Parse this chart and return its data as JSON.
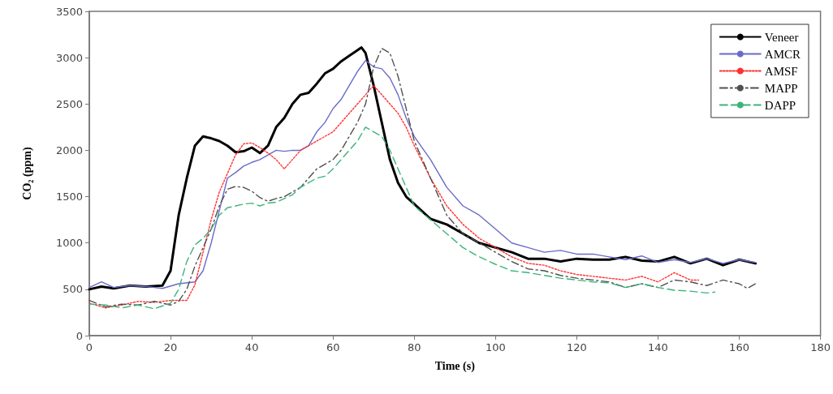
{
  "chart_data": {
    "type": "line",
    "xlabel": "Time (s)",
    "ylabel": "CO₂ (ppm)",
    "xlim": [
      0,
      180
    ],
    "xticks": [
      0,
      20,
      40,
      60,
      80,
      100,
      120,
      140,
      160,
      180
    ],
    "ylim": [
      0,
      3500
    ],
    "yticks": [
      0,
      500,
      1000,
      1500,
      2000,
      2500,
      3000,
      3500
    ],
    "grid": false,
    "legend": "top right",
    "marker": "none",
    "series": [
      {
        "name": "Veneer",
        "color": "#000000",
        "line_style": "solid",
        "x": [
          0,
          3,
          6,
          10,
          14,
          18,
          20,
          22,
          24,
          26,
          28,
          30,
          32,
          34,
          36,
          38,
          40,
          42,
          44,
          46,
          48,
          50,
          52,
          54,
          56,
          58,
          60,
          62,
          64,
          66,
          67,
          68,
          70,
          72,
          74,
          76,
          78,
          80,
          84,
          88,
          92,
          96,
          100,
          104,
          108,
          112,
          116,
          120,
          124,
          128,
          132,
          136,
          140,
          144,
          148,
          152,
          156,
          160,
          164
        ],
        "values": [
          500,
          530,
          510,
          540,
          530,
          540,
          700,
          1300,
          1700,
          2050,
          2150,
          2130,
          2100,
          2050,
          1980,
          1990,
          2030,
          1970,
          2050,
          2250,
          2350,
          2500,
          2600,
          2620,
          2720,
          2830,
          2880,
          2960,
          3020,
          3080,
          3110,
          3050,
          2700,
          2300,
          1900,
          1650,
          1500,
          1420,
          1260,
          1200,
          1100,
          1000,
          950,
          900,
          830,
          830,
          800,
          830,
          820,
          820,
          850,
          810,
          800,
          850,
          780,
          830,
          760,
          820,
          780
        ]
      },
      {
        "name": "AMCR",
        "color": "#6b6bc8",
        "line_style": "solid",
        "x": [
          0,
          3,
          6,
          10,
          14,
          18,
          22,
          26,
          28,
          30,
          32,
          34,
          36,
          38,
          40,
          42,
          44,
          46,
          48,
          50,
          52,
          54,
          56,
          58,
          60,
          62,
          64,
          66,
          68,
          70,
          72,
          74,
          76,
          78,
          80,
          84,
          88,
          92,
          96,
          100,
          104,
          108,
          112,
          116,
          120,
          124,
          128,
          132,
          136,
          140,
          144,
          148,
          152,
          156,
          160,
          164
        ],
        "values": [
          520,
          580,
          520,
          540,
          530,
          510,
          560,
          580,
          700,
          1000,
          1350,
          1700,
          1760,
          1830,
          1870,
          1900,
          1950,
          2000,
          1990,
          2000,
          2000,
          2050,
          2200,
          2300,
          2450,
          2550,
          2700,
          2850,
          2970,
          2900,
          2880,
          2780,
          2600,
          2350,
          2150,
          1900,
          1600,
          1400,
          1300,
          1150,
          1000,
          950,
          900,
          920,
          880,
          880,
          850,
          820,
          860,
          790,
          820,
          790,
          830,
          780,
          820,
          790
        ]
      },
      {
        "name": "AMSF",
        "color": "#ff3030",
        "line_style": "dotted",
        "x": [
          0,
          4,
          8,
          12,
          16,
          20,
          24,
          26,
          28,
          30,
          32,
          34,
          36,
          38,
          40,
          42,
          44,
          46,
          48,
          50,
          52,
          54,
          56,
          58,
          60,
          62,
          64,
          66,
          68,
          70,
          72,
          74,
          76,
          78,
          80,
          84,
          88,
          92,
          96,
          100,
          104,
          108,
          112,
          116,
          120,
          124,
          128,
          132,
          136,
          140,
          144,
          148,
          150
        ],
        "values": [
          350,
          300,
          330,
          370,
          360,
          380,
          380,
          550,
          900,
          1250,
          1550,
          1750,
          1950,
          2070,
          2080,
          2030,
          1970,
          1900,
          1800,
          1900,
          2000,
          2050,
          2100,
          2150,
          2200,
          2300,
          2400,
          2500,
          2600,
          2700,
          2600,
          2500,
          2400,
          2250,
          2050,
          1700,
          1400,
          1200,
          1050,
          950,
          850,
          780,
          760,
          700,
          660,
          640,
          620,
          600,
          640,
          580,
          680,
          600,
          600
        ]
      },
      {
        "name": "MAPP",
        "color": "#505050",
        "line_style": "dashdot",
        "x": [
          0,
          4,
          8,
          12,
          16,
          20,
          22,
          24,
          26,
          28,
          30,
          32,
          34,
          36,
          38,
          40,
          42,
          44,
          46,
          48,
          50,
          52,
          54,
          56,
          58,
          60,
          62,
          64,
          66,
          68,
          70,
          72,
          74,
          76,
          78,
          80,
          84,
          88,
          92,
          96,
          100,
          104,
          108,
          112,
          116,
          120,
          124,
          128,
          132,
          136,
          140,
          144,
          148,
          152,
          156,
          160,
          162,
          164
        ],
        "values": [
          380,
          310,
          340,
          330,
          370,
          330,
          370,
          500,
          750,
          950,
          1150,
          1400,
          1580,
          1610,
          1600,
          1560,
          1490,
          1450,
          1480,
          1500,
          1550,
          1600,
          1700,
          1800,
          1850,
          1900,
          2000,
          2150,
          2300,
          2500,
          2900,
          3100,
          3050,
          2800,
          2450,
          2100,
          1700,
          1300,
          1100,
          1000,
          900,
          800,
          720,
          700,
          650,
          620,
          600,
          580,
          520,
          560,
          520,
          600,
          580,
          540,
          600,
          560,
          510,
          560
        ]
      },
      {
        "name": "DAPP",
        "color": "#3cb37a",
        "line_style": "dashed",
        "x": [
          0,
          4,
          8,
          12,
          16,
          20,
          22,
          24,
          26,
          28,
          30,
          32,
          34,
          36,
          38,
          40,
          42,
          44,
          46,
          48,
          50,
          52,
          54,
          56,
          58,
          60,
          62,
          64,
          66,
          68,
          70,
          72,
          74,
          76,
          78,
          80,
          84,
          88,
          92,
          96,
          100,
          104,
          108,
          112,
          116,
          120,
          124,
          128,
          132,
          136,
          140,
          144,
          148,
          152,
          154
        ],
        "values": [
          340,
          330,
          300,
          330,
          290,
          350,
          500,
          800,
          980,
          1050,
          1150,
          1300,
          1380,
          1400,
          1420,
          1430,
          1400,
          1430,
          1440,
          1480,
          1520,
          1600,
          1650,
          1700,
          1720,
          1800,
          1900,
          2000,
          2100,
          2250,
          2200,
          2150,
          2000,
          1800,
          1600,
          1400,
          1250,
          1100,
          950,
          850,
          770,
          700,
          680,
          650,
          620,
          600,
          580,
          570,
          520,
          560,
          520,
          490,
          480,
          460,
          470
        ]
      }
    ]
  }
}
